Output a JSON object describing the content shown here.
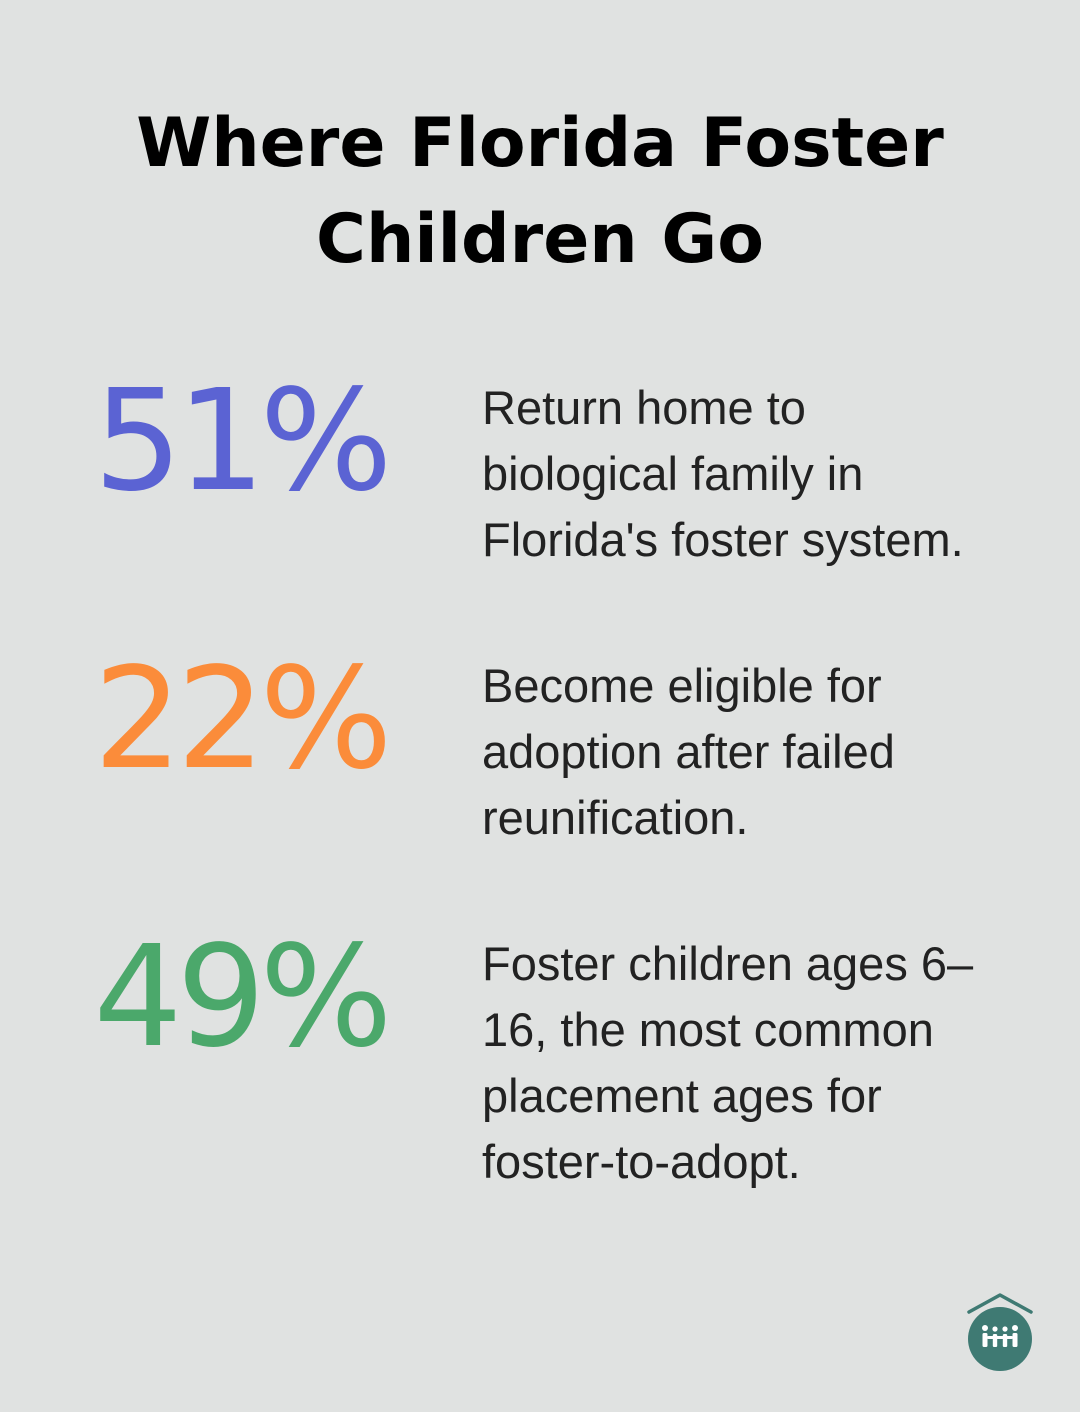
{
  "title": {
    "line1": "Where Florida Foster",
    "line2": "Children Go"
  },
  "stats": [
    {
      "value": "51%",
      "color": "#5b63d3",
      "lines": [
        "Return home to",
        "biological family in",
        "Florida's foster system."
      ]
    },
    {
      "value": "22%",
      "color": "#fb8c3a",
      "lines": [
        "Become eligible for",
        "adoption after failed",
        "reunification."
      ]
    },
    {
      "value": "49%",
      "color": "#4ba86b",
      "lines": [
        "Foster children ages 6–",
        "16, the most common",
        "placement ages for",
        "foster-to-adopt."
      ]
    }
  ],
  "logo": {
    "icon": "house-family-icon",
    "color": "#3f7a73"
  }
}
